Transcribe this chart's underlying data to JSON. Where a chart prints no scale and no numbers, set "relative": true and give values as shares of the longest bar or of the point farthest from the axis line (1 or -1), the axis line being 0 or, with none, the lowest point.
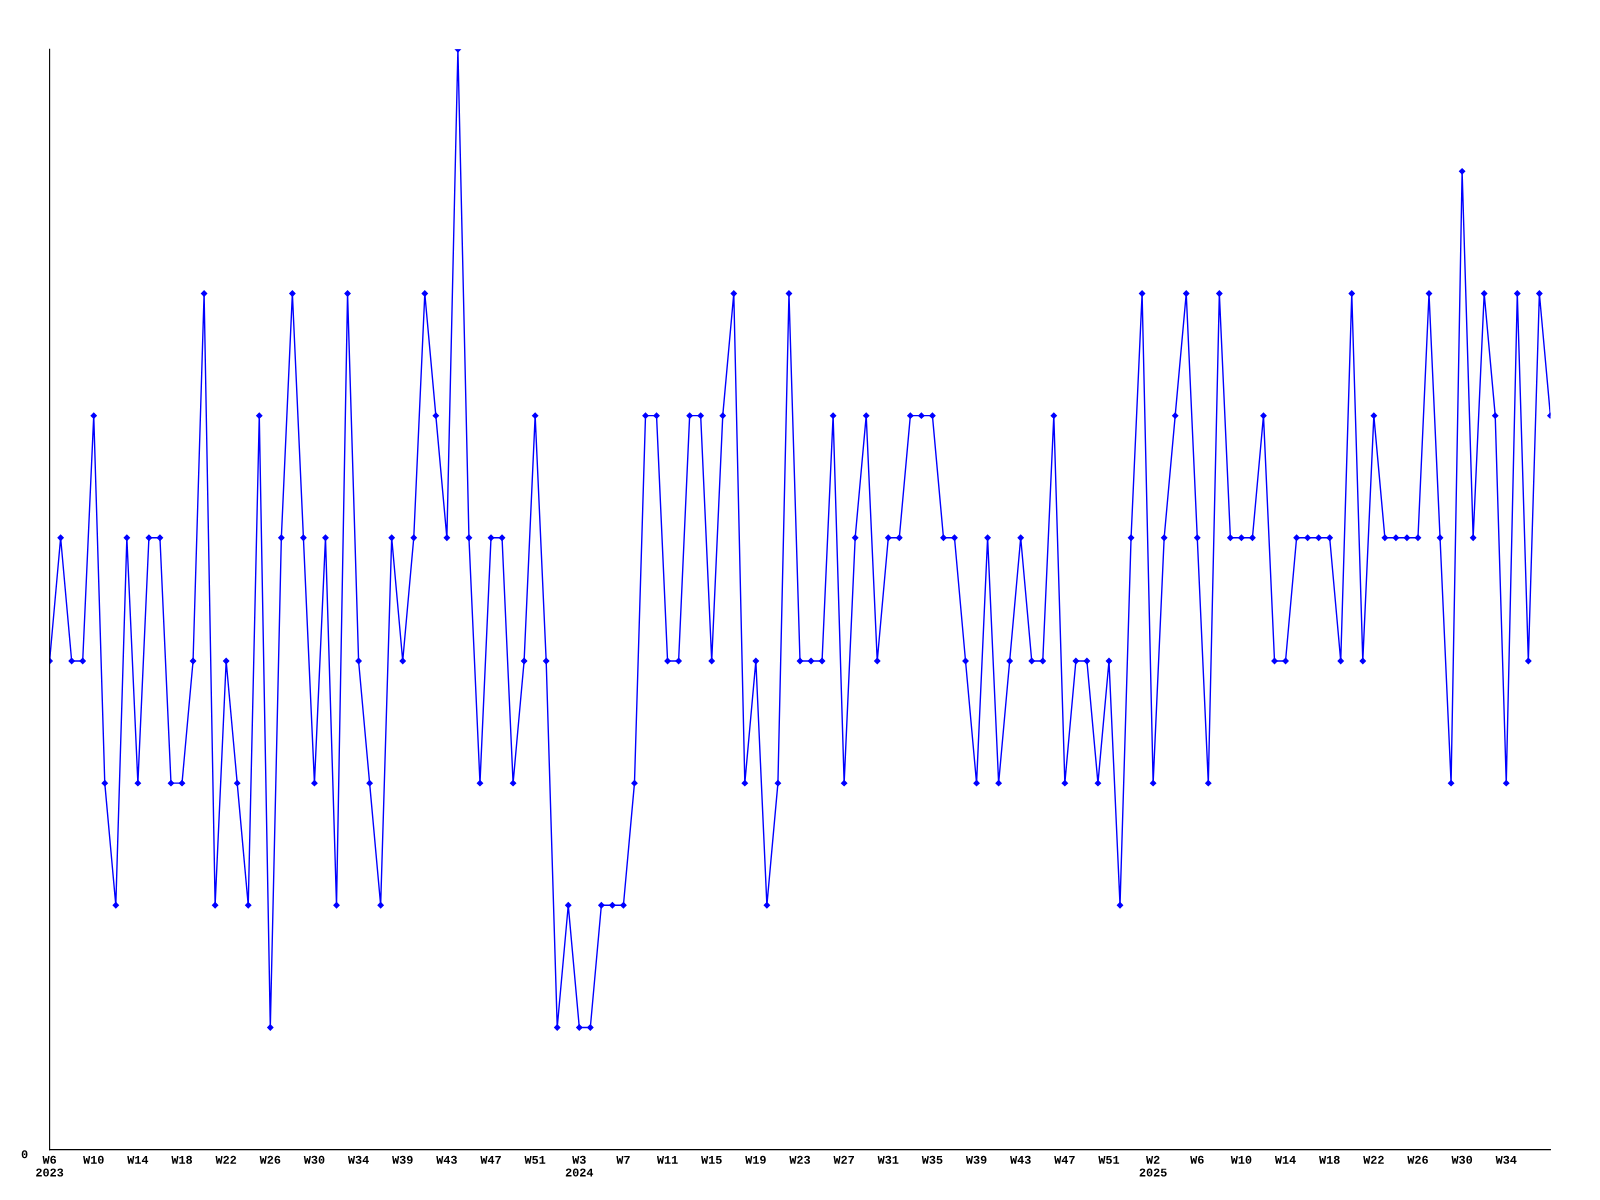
{
  "chart_data": {
    "type": "line",
    "relative": true,
    "color": "#0000ff",
    "marker": "diamond",
    "line_style": "solid",
    "grid": false,
    "legend": false,
    "categories": [
      "W6\n2023",
      null,
      null,
      null,
      "W10",
      null,
      null,
      null,
      "W14",
      null,
      null,
      null,
      "W18",
      null,
      null,
      null,
      "W22",
      null,
      null,
      null,
      "W26",
      null,
      null,
      null,
      "W30",
      null,
      null,
      null,
      "W34",
      null,
      null,
      null,
      "W39",
      null,
      null,
      null,
      "W43",
      null,
      null,
      null,
      "W47",
      null,
      null,
      null,
      "W51",
      null,
      null,
      null,
      "W3\n2024",
      null,
      null,
      null,
      "W7",
      null,
      null,
      null,
      "W11",
      null,
      null,
      null,
      "W15",
      null,
      null,
      null,
      "W19",
      null,
      null,
      null,
      "W23",
      null,
      null,
      null,
      "W27",
      null,
      null,
      null,
      "W31",
      null,
      null,
      null,
      "W35",
      null,
      null,
      null,
      "W39",
      null,
      null,
      null,
      "W43",
      null,
      null,
      null,
      "W47",
      null,
      null,
      null,
      "W51",
      null,
      null,
      null,
      "W2\n2025",
      null,
      null,
      null,
      "W6",
      null,
      null,
      null,
      "W10",
      null,
      null,
      null,
      "W14",
      null,
      null,
      null,
      "W18",
      null,
      null,
      null,
      "W22",
      null,
      null,
      null,
      "W26",
      null,
      null,
      null,
      "W30",
      null,
      null,
      null,
      "W34",
      null,
      null,
      null,
      null
    ],
    "values": [
      0.444,
      0.556,
      0.444,
      0.444,
      0.667,
      0.333,
      0.222,
      0.556,
      0.333,
      0.556,
      0.556,
      0.333,
      0.333,
      0.444,
      0.778,
      0.222,
      0.444,
      0.333,
      0.222,
      0.667,
      0.111,
      0.556,
      0.778,
      0.556,
      0.333,
      0.556,
      0.222,
      0.778,
      0.444,
      0.333,
      0.222,
      0.556,
      0.444,
      0.556,
      0.778,
      0.667,
      0.556,
      1,
      0.556,
      0.333,
      0.556,
      0.556,
      0.333,
      0.444,
      0.667,
      0.444,
      0.111,
      0.222,
      0.111,
      0.111,
      0.222,
      0.222,
      0.222,
      0.333,
      0.667,
      0.667,
      0.444,
      0.444,
      0.667,
      0.667,
      0.444,
      0.667,
      0.778,
      0.333,
      0.444,
      0.222,
      0.333,
      0.778,
      0.444,
      0.444,
      0.444,
      0.667,
      0.333,
      0.556,
      0.667,
      0.444,
      0.556,
      0.556,
      0.667,
      0.667,
      0.667,
      0.556,
      0.556,
      0.444,
      0.333,
      0.556,
      0.333,
      0.444,
      0.556,
      0.444,
      0.444,
      0.667,
      0.333,
      0.444,
      0.444,
      0.333,
      0.444,
      0.222,
      0.556,
      0.778,
      0.333,
      0.556,
      0.667,
      0.778,
      0.556,
      0.333,
      0.778,
      0.556,
      0.556,
      0.556,
      0.667,
      0.444,
      0.444,
      0.556,
      0.556,
      0.556,
      0.556,
      0.444,
      0.778,
      0.444,
      0.667,
      0.556,
      0.556,
      0.556,
      0.556,
      0.778,
      0.556,
      0.333,
      0.889,
      0.556,
      0.778,
      0.667,
      0.333,
      0.778,
      0.444,
      0.778,
      0.667
    ],
    "annotations": [
      "0"
    ]
  }
}
